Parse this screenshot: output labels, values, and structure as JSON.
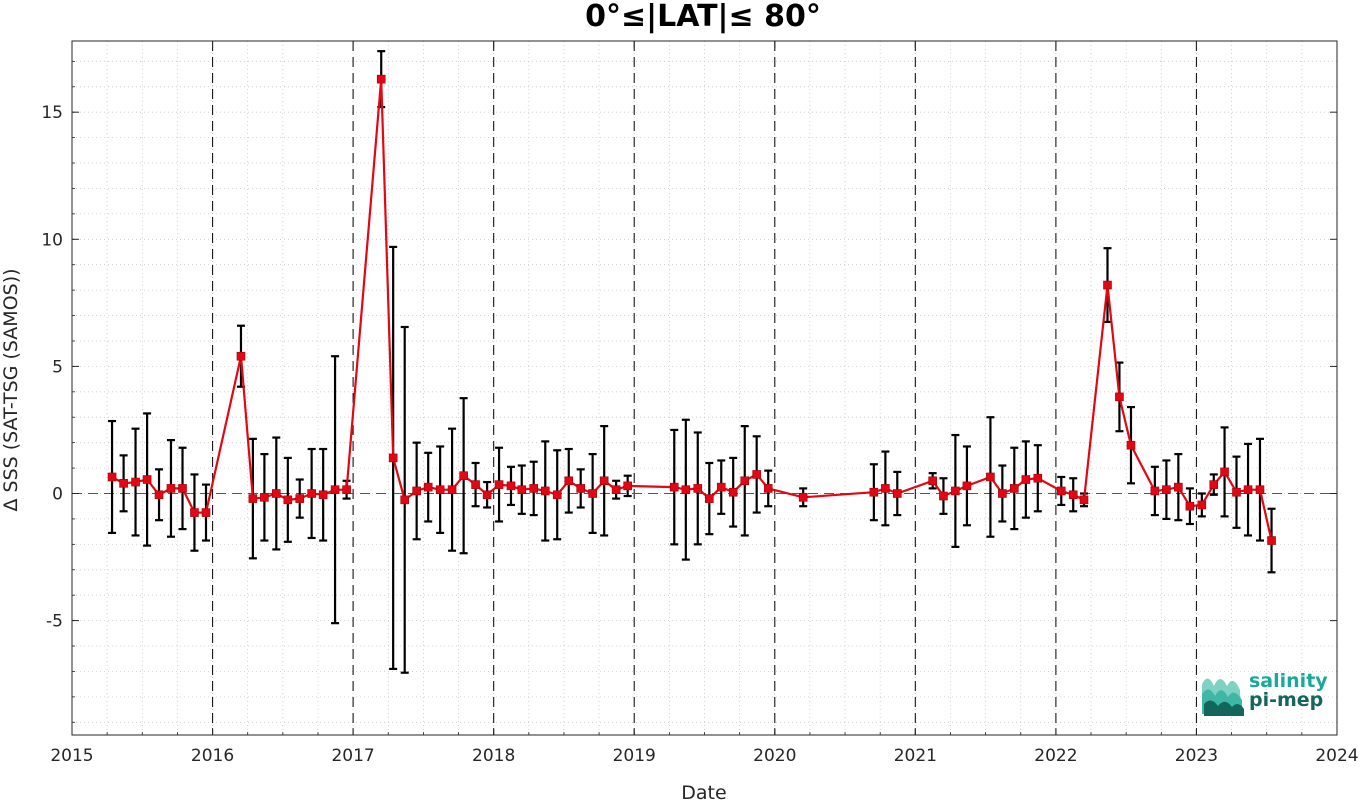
{
  "chart_data": {
    "type": "line",
    "title": "0°≤|LAT|≤ 80°",
    "xlabel": "Date",
    "ylabel": "Δ SSS (SAT-TSG (SAMOS))",
    "xlim": [
      "2015-01-01",
      "2024-01-01"
    ],
    "ylim": [
      -9.5,
      17.8
    ],
    "xticks": [
      "2015",
      "2016",
      "2017",
      "2018",
      "2019",
      "2020",
      "2021",
      "2022",
      "2023",
      "2024"
    ],
    "yticks": [
      -5,
      0,
      5,
      10,
      15
    ],
    "ytick_labels": [
      "-5",
      "0",
      "5",
      "10",
      "15"
    ],
    "grid": "minor dotted",
    "year_separators": "dashed vertical lines",
    "zero_line": "dashed horizontal",
    "colors": {
      "series": "#e30613",
      "errorbar": "#000000",
      "logo": "#1aa89a",
      "logo_dark": "#14665c"
    },
    "series": [
      {
        "name": "",
        "marker": "square",
        "x": [
          "2015-04-15",
          "2015-05-15",
          "2015-06-15",
          "2015-07-15",
          "2015-08-15",
          "2015-09-15",
          "2015-10-15",
          "2015-11-15",
          "2015-12-15",
          "2016-03-15",
          "2016-04-15",
          "2016-05-15",
          "2016-06-15",
          "2016-07-15",
          "2016-08-15",
          "2016-09-15",
          "2016-10-15",
          "2016-11-15",
          "2016-12-15",
          "2017-03-15",
          "2017-04-15",
          "2017-05-15",
          "2017-06-15",
          "2017-07-15",
          "2017-08-15",
          "2017-09-15",
          "2017-10-15",
          "2017-11-15",
          "2017-12-15",
          "2018-01-15",
          "2018-02-15",
          "2018-03-15",
          "2018-04-15",
          "2018-05-15",
          "2018-06-15",
          "2018-07-15",
          "2018-08-15",
          "2018-09-15",
          "2018-10-15",
          "2018-11-15",
          "2018-12-15",
          "2019-04-15",
          "2019-05-15",
          "2019-06-15",
          "2019-07-15",
          "2019-08-15",
          "2019-09-15",
          "2019-10-15",
          "2019-11-15",
          "2019-12-15",
          "2020-03-15",
          "2020-09-15",
          "2020-10-15",
          "2020-11-15",
          "2021-02-15",
          "2021-03-15",
          "2021-04-15",
          "2021-05-15",
          "2021-07-15",
          "2021-08-15",
          "2021-09-15",
          "2021-10-15",
          "2021-11-15",
          "2022-01-15",
          "2022-02-15",
          "2022-03-15",
          "2022-05-15",
          "2022-06-15",
          "2022-07-15",
          "2022-09-15",
          "2022-10-15",
          "2022-11-15",
          "2022-12-15",
          "2023-01-15",
          "2023-02-15",
          "2023-03-15",
          "2023-04-15",
          "2023-05-15",
          "2023-06-15",
          "2023-07-15"
        ],
        "y": [
          0.65,
          0.4,
          0.45,
          0.55,
          -0.05,
          0.2,
          0.2,
          -0.75,
          -0.75,
          5.4,
          -0.2,
          -0.15,
          0.0,
          -0.25,
          -0.2,
          0.0,
          -0.05,
          0.15,
          0.15,
          16.3,
          1.4,
          -0.25,
          0.1,
          0.25,
          0.15,
          0.15,
          0.7,
          0.35,
          -0.05,
          0.35,
          0.3,
          0.15,
          0.2,
          0.1,
          -0.05,
          0.5,
          0.2,
          0.0,
          0.5,
          0.15,
          0.3,
          0.25,
          0.15,
          0.2,
          -0.2,
          0.25,
          0.05,
          0.5,
          0.75,
          0.2,
          -0.15,
          0.05,
          0.2,
          0.0,
          0.5,
          -0.1,
          0.1,
          0.3,
          0.65,
          0.0,
          0.2,
          0.55,
          0.6,
          0.1,
          -0.05,
          -0.25,
          8.2,
          3.8,
          1.9,
          0.1,
          0.15,
          0.25,
          -0.5,
          -0.45,
          0.35,
          0.85,
          0.05,
          0.15,
          0.15,
          -1.85
        ],
        "err": [
          2.2,
          1.1,
          2.1,
          2.6,
          1.0,
          1.9,
          1.6,
          1.5,
          1.1,
          1.2,
          2.35,
          1.7,
          2.2,
          1.65,
          0.75,
          1.75,
          1.8,
          5.25,
          0.35,
          1.1,
          8.3,
          6.8,
          1.9,
          1.35,
          1.7,
          2.4,
          3.05,
          0.85,
          0.5,
          1.45,
          0.75,
          0.95,
          1.05,
          1.95,
          1.75,
          1.25,
          0.75,
          1.55,
          2.15,
          0.35,
          0.4,
          2.25,
          2.75,
          2.2,
          1.4,
          1.05,
          1.35,
          2.15,
          1.5,
          0.7,
          0.35,
          1.1,
          1.45,
          0.85,
          0.3,
          0.7,
          2.2,
          1.55,
          2.35,
          1.1,
          1.6,
          1.5,
          1.3,
          0.55,
          0.65,
          0.25,
          1.45,
          1.35,
          1.5,
          0.95,
          1.15,
          1.3,
          0.7,
          0.45,
          0.4,
          1.75,
          1.4,
          1.8,
          2.0,
          1.25
        ]
      }
    ]
  },
  "logo": {
    "line1": "salinity",
    "line2": "pi-mep"
  }
}
